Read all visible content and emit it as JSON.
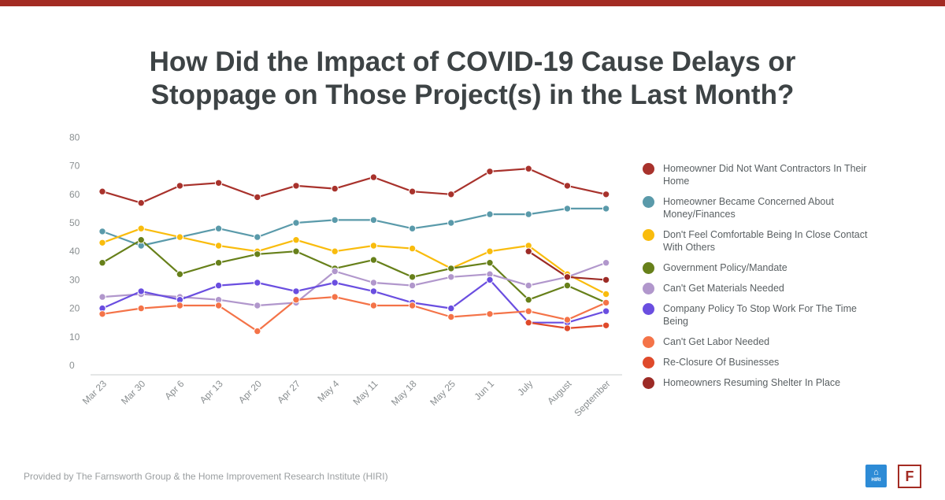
{
  "colors": {
    "top_bar": "#a32b23",
    "hiri_logo": "#2d8bd6",
    "farnsworth_logo": "#a32b23"
  },
  "title": {
    "line1": "How Did the Impact of COVID-19 Cause Delays or",
    "line2": "Stoppage on Those Project(s) in the Last Month?"
  },
  "footer": {
    "text": "Provided by The Farnsworth Group & the Home Improvement Research Institute (HIRI)"
  },
  "logos": {
    "hiri_text": "HIRI",
    "hiri_icon": "house-icon",
    "farnsworth_letter": "F"
  },
  "chart_data": {
    "type": "line",
    "title": "How Did the Impact of COVID-19 Cause Delays or Stoppage on Those Project(s) in the Last Month?",
    "xlabel": "",
    "ylabel": "",
    "ylim": [
      0,
      80
    ],
    "yticks": [
      0,
      10,
      20,
      30,
      40,
      50,
      60,
      70,
      80
    ],
    "grid": false,
    "legend_position": "right",
    "categories": [
      "Mar 23",
      "Mar 30",
      "Apr 6",
      "Apr 13",
      "Apr 20",
      "Apr 27",
      "May 4",
      "May 11",
      "May 18",
      "May 25",
      "Jun 1",
      "July",
      "August",
      "September"
    ],
    "series": [
      {
        "name": "Homeowner Did Not Want Contractors In Their Home",
        "color": "#a8322c",
        "values": [
          61,
          57,
          63,
          64,
          59,
          63,
          62,
          66,
          61,
          60,
          68,
          69,
          63,
          60
        ]
      },
      {
        "name": "Homeowner Became Concerned About Money/Finances",
        "color": "#5a9aaa",
        "values": [
          47,
          42,
          45,
          48,
          45,
          50,
          51,
          51,
          48,
          50,
          53,
          53,
          55,
          55
        ]
      },
      {
        "name": "Don't Feel Comfortable Being In Close Contact With Others",
        "color": "#f9bc0d",
        "values": [
          43,
          48,
          45,
          42,
          40,
          44,
          40,
          42,
          41,
          34,
          40,
          42,
          32,
          25
        ]
      },
      {
        "name": "Government Policy/Mandate",
        "color": "#67801a",
        "values": [
          36,
          44,
          32,
          36,
          39,
          40,
          34,
          37,
          31,
          34,
          36,
          23,
          28,
          22
        ]
      },
      {
        "name": "Can't Get Materials Needed",
        "color": "#b197cc",
        "values": [
          24,
          25,
          24,
          23,
          21,
          22,
          33,
          29,
          28,
          31,
          32,
          28,
          31,
          36
        ]
      },
      {
        "name": "Company Policy To Stop Work For The Time Being",
        "color": "#6a4ee0",
        "values": [
          20,
          26,
          23,
          28,
          29,
          26,
          29,
          26,
          22,
          20,
          30,
          15,
          15,
          19
        ]
      },
      {
        "name": "Can't Get Labor Needed",
        "color": "#f47348",
        "values": [
          18,
          20,
          21,
          21,
          12,
          23,
          24,
          21,
          21,
          17,
          18,
          19,
          16,
          22
        ]
      },
      {
        "name": "Re-Closure Of Businesses",
        "color": "#df4a2b",
        "values": [
          null,
          null,
          null,
          null,
          null,
          null,
          null,
          null,
          null,
          null,
          null,
          15,
          13,
          14
        ]
      },
      {
        "name": "Homeowners Resuming Shelter In Place",
        "color": "#9c2b26",
        "values": [
          null,
          null,
          null,
          null,
          null,
          null,
          null,
          null,
          null,
          null,
          null,
          40,
          31,
          30
        ]
      }
    ]
  }
}
